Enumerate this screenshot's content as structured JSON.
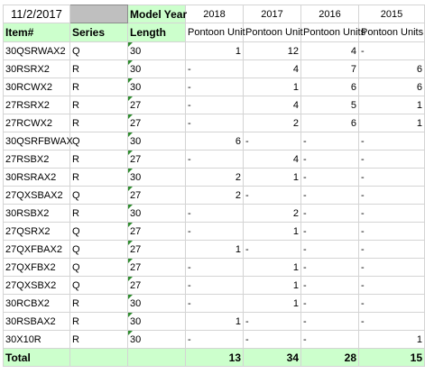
{
  "top": {
    "date": "11/2/2017",
    "model_year_label": "Model Year",
    "years": [
      "2018",
      "2017",
      "2016",
      "2015"
    ]
  },
  "header": {
    "item": "Item#",
    "series": "Series",
    "length": "Length",
    "unit_labels": [
      "Pontoon Unit",
      "Pontoon Unit",
      "Pontoon Units",
      "Pontoon Units"
    ]
  },
  "rows": [
    {
      "item": "30QSRWAX2",
      "series": "Q",
      "length": "30",
      "y2018": "1",
      "y2017": "12",
      "y2016": "4",
      "y2015": "-"
    },
    {
      "item": "30RSRX2",
      "series": "R",
      "length": "30",
      "y2018": "-",
      "y2017": "4",
      "y2016": "7",
      "y2015": "6"
    },
    {
      "item": "30RCWX2",
      "series": "R",
      "length": "30",
      "y2018": "-",
      "y2017": "1",
      "y2016": "6",
      "y2015": "6"
    },
    {
      "item": "27RSRX2",
      "series": "R",
      "length": "27",
      "y2018": "-",
      "y2017": "4",
      "y2016": "5",
      "y2015": "1"
    },
    {
      "item": "27RCWX2",
      "series": "R",
      "length": "27",
      "y2018": "-",
      "y2017": "2",
      "y2016": "6",
      "y2015": "1"
    },
    {
      "item": "30QSRFBWAX",
      "series": "Q",
      "length": "30",
      "y2018": "6",
      "y2017": "-",
      "y2016": "-",
      "y2015": "-"
    },
    {
      "item": "27RSBX2",
      "series": "R",
      "length": "27",
      "y2018": "-",
      "y2017": "4",
      "y2016": "-",
      "y2015": "-"
    },
    {
      "item": "30RSRAX2",
      "series": "R",
      "length": "30",
      "y2018": "2",
      "y2017": "1",
      "y2016": "-",
      "y2015": "-"
    },
    {
      "item": "27QXSBAX2",
      "series": "Q",
      "length": "27",
      "y2018": "2",
      "y2017": "-",
      "y2016": "-",
      "y2015": "-"
    },
    {
      "item": "30RSBX2",
      "series": "R",
      "length": "30",
      "y2018": "-",
      "y2017": "2",
      "y2016": "-",
      "y2015": "-"
    },
    {
      "item": "27QSRX2",
      "series": "Q",
      "length": "27",
      "y2018": "-",
      "y2017": "1",
      "y2016": "-",
      "y2015": "-"
    },
    {
      "item": "27QXFBAX2",
      "series": "Q",
      "length": "27",
      "y2018": "1",
      "y2017": "-",
      "y2016": "-",
      "y2015": "-"
    },
    {
      "item": "27QXFBX2",
      "series": "Q",
      "length": "27",
      "y2018": "-",
      "y2017": "1",
      "y2016": "-",
      "y2015": "-"
    },
    {
      "item": "27QXSBX2",
      "series": "Q",
      "length": "27",
      "y2018": "-",
      "y2017": "1",
      "y2016": "-",
      "y2015": "-"
    },
    {
      "item": "30RCBX2",
      "series": "R",
      "length": "30",
      "y2018": "-",
      "y2017": "1",
      "y2016": "-",
      "y2015": "-"
    },
    {
      "item": "30RSBAX2",
      "series": "R",
      "length": "30",
      "y2018": "1",
      "y2017": "-",
      "y2016": "-",
      "y2015": "-"
    },
    {
      "item": "30X10R",
      "series": "R",
      "length": "30",
      "y2018": "-",
      "y2017": "-",
      "y2016": "-",
      "y2015": "1"
    }
  ],
  "totals": {
    "label": "Total",
    "y2018": "13",
    "y2017": "34",
    "y2016": "28",
    "y2015": "15"
  },
  "colors": {
    "header_green": "#ccffcc",
    "grey_cell": "#bfbfbf",
    "comment_marker": "#2e8b2e"
  }
}
